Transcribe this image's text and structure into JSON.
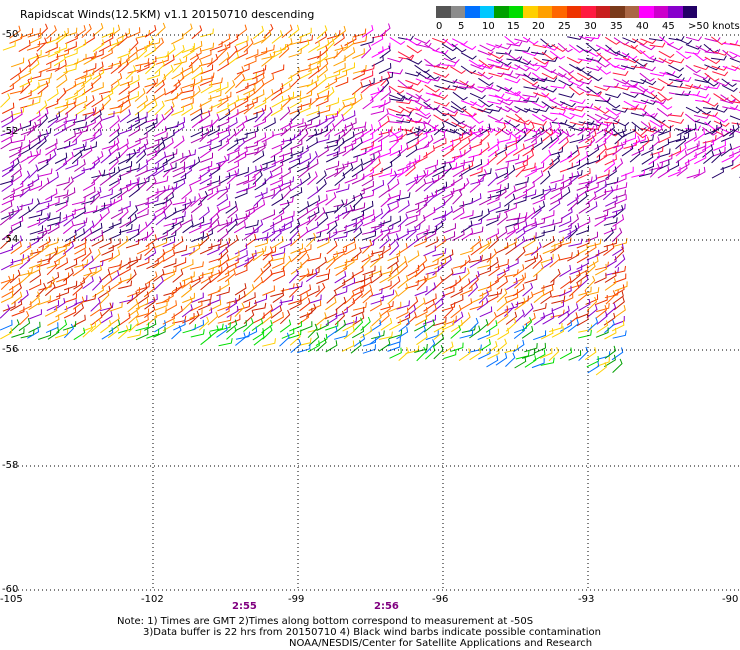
{
  "title": "Rapidscat Winds(12.5KM) v1.1 20150710 descending",
  "legend": {
    "colors": [
      "#555555",
      "#8c8c8c",
      "#0070ff",
      "#00c8ff",
      "#00a000",
      "#00dd00",
      "#ffd000",
      "#ffa000",
      "#ff6600",
      "#ee3300",
      "#ff1a40",
      "#c81e1e",
      "#7a3a1a",
      "#aa6644",
      "#ff00ff",
      "#cc00cc",
      "#8800cc",
      "#220066"
    ],
    "labels": [
      "0",
      "5",
      "10",
      "15",
      "20",
      "25",
      "30",
      "35",
      "40",
      "45",
      ">50 knots"
    ]
  },
  "axes": {
    "lat_labels": [
      "-50",
      "-52",
      "-54",
      "-56",
      "-58",
      "-60"
    ],
    "lon_labels": [
      "-105",
      "-102",
      "-99",
      "-96",
      "-93",
      "-90"
    ]
  },
  "times": [
    "2:55",
    "2:56"
  ],
  "notes": [
    "Note: 1) Times are GMT 2)Times along bottom correspond to measurement at -50S",
    "3)Data buffer is 22 hrs from 20150710 4) Black wind barbs indicate possible contamination",
    "NOAA/NESDIS/Center for Satellite Applications and Research"
  ]
}
